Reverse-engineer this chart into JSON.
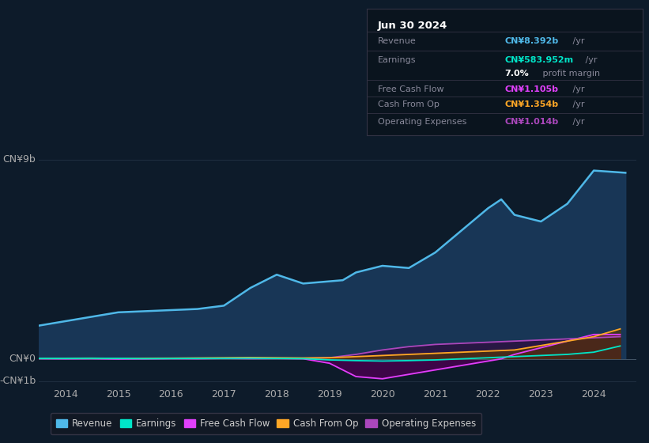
{
  "bg_color": "#0d1b2a",
  "plot_bg_color": "#0d1b2a",
  "ylim": [
    -1200000000.0,
    9800000000.0
  ],
  "xlim_year": [
    2013.5,
    2024.8
  ],
  "xtick_years": [
    2014,
    2015,
    2016,
    2017,
    2018,
    2019,
    2020,
    2021,
    2022,
    2023,
    2024
  ],
  "grid_color": "#1e2d3e",
  "revenue_color": "#4fb8e8",
  "revenue_fill": "#1a3a5c",
  "earnings_color": "#00e5c8",
  "fcf_color": "#e040fb",
  "fcf_fill": "#4a0050",
  "cashop_color": "#ffa726",
  "cashop_fill": "#5c3a00",
  "opex_color": "#ab47bc",
  "opex_fill": "#2d1040",
  "legend_items": [
    {
      "label": "Revenue",
      "color": "#4fb8e8"
    },
    {
      "label": "Earnings",
      "color": "#00e5c8"
    },
    {
      "label": "Free Cash Flow",
      "color": "#e040fb"
    },
    {
      "label": "Cash From Op",
      "color": "#ffa726"
    },
    {
      "label": "Operating Expenses",
      "color": "#ab47bc"
    }
  ],
  "info_box_title": "Jun 30 2024",
  "info_rows": [
    {
      "label": "Revenue",
      "value": "CN¥8.392b",
      "suffix": " /yr",
      "color": "#4fb8e8"
    },
    {
      "label": "Earnings",
      "value": "CN¥583.952m",
      "suffix": " /yr",
      "color": "#00e5c8"
    },
    {
      "label": "",
      "value": "7.0%",
      "suffix": " profit margin",
      "color": "#ffffff"
    },
    {
      "label": "Free Cash Flow",
      "value": "CN¥1.105b",
      "suffix": " /yr",
      "color": "#e040fb"
    },
    {
      "label": "Cash From Op",
      "value": "CN¥1.354b",
      "suffix": " /yr",
      "color": "#ffa726"
    },
    {
      "label": "Operating Expenses",
      "value": "CN¥1.014b",
      "suffix": " /yr",
      "color": "#ab47bc"
    }
  ],
  "revenue": {
    "years": [
      2013.5,
      2014.0,
      2014.5,
      2015.0,
      2015.5,
      2016.0,
      2016.5,
      2017.0,
      2017.5,
      2018.0,
      2018.25,
      2018.5,
      2019.0,
      2019.25,
      2019.5,
      2020.0,
      2020.5,
      2021.0,
      2021.5,
      2022.0,
      2022.25,
      2022.5,
      2023.0,
      2023.5,
      2024.0,
      2024.6
    ],
    "values": [
      1500000000.0,
      1700000000.0,
      1900000000.0,
      2100000000.0,
      2150000000.0,
      2200000000.0,
      2250000000.0,
      2400000000.0,
      3200000000.0,
      3800000000.0,
      3600000000.0,
      3400000000.0,
      3500000000.0,
      3550000000.0,
      3900000000.0,
      4200000000.0,
      4100000000.0,
      4800000000.0,
      5800000000.0,
      6800000000.0,
      7200000000.0,
      6500000000.0,
      6200000000.0,
      7000000000.0,
      8500000000.0,
      8400000000.0
    ]
  },
  "earnings": {
    "years": [
      2013.5,
      2014.0,
      2014.5,
      2015.0,
      2015.5,
      2016.0,
      2016.5,
      2017.0,
      2017.5,
      2018.0,
      2018.5,
      2019.0,
      2019.5,
      2020.0,
      2020.5,
      2021.0,
      2021.5,
      2022.0,
      2022.5,
      2023.0,
      2023.5,
      2024.0,
      2024.5
    ],
    "values": [
      20000000.0,
      20000000.0,
      25000000.0,
      20000000.0,
      10000000.0,
      15000000.0,
      20000000.0,
      25000000.0,
      30000000.0,
      20000000.0,
      10000000.0,
      -50000000.0,
      -80000000.0,
      -100000000.0,
      -80000000.0,
      -50000000.0,
      0.0,
      50000000.0,
      100000000.0,
      150000000.0,
      200000000.0,
      300000000.0,
      580000000.0
    ]
  },
  "fcf": {
    "years": [
      2013.5,
      2014.0,
      2014.5,
      2015.0,
      2015.5,
      2016.0,
      2016.5,
      2017.0,
      2017.5,
      2018.0,
      2018.5,
      2019.0,
      2019.25,
      2019.5,
      2020.0,
      2020.5,
      2021.0,
      2021.5,
      2022.0,
      2022.25,
      2022.5,
      2023.0,
      2023.5,
      2024.0,
      2024.5
    ],
    "values": [
      10000000.0,
      0.0,
      5000000.0,
      -10000000.0,
      0.0,
      10000000.0,
      5000000.0,
      20000000.0,
      10000000.0,
      15000000.0,
      5000000.0,
      -200000000.0,
      -500000000.0,
      -800000000.0,
      -900000000.0,
      -700000000.0,
      -500000000.0,
      -300000000.0,
      -100000000.0,
      0.0,
      200000000.0,
      500000000.0,
      800000000.0,
      1100000000.0,
      1100000000.0
    ]
  },
  "cashop": {
    "years": [
      2013.5,
      2014.0,
      2014.5,
      2015.0,
      2015.5,
      2016.0,
      2016.5,
      2017.0,
      2017.5,
      2018.0,
      2018.5,
      2019.0,
      2019.5,
      2020.0,
      2020.5,
      2021.0,
      2021.5,
      2022.0,
      2022.5,
      2023.0,
      2023.5,
      2024.0,
      2024.5
    ],
    "values": [
      20000000.0,
      25000000.0,
      30000000.0,
      20000000.0,
      25000000.0,
      30000000.0,
      40000000.0,
      50000000.0,
      60000000.0,
      50000000.0,
      40000000.0,
      50000000.0,
      100000000.0,
      150000000.0,
      200000000.0,
      250000000.0,
      300000000.0,
      350000000.0,
      400000000.0,
      600000000.0,
      800000000.0,
      1000000000.0,
      1350000000.0
    ]
  },
  "opex": {
    "years": [
      2013.5,
      2014.0,
      2014.5,
      2015.0,
      2015.5,
      2016.0,
      2016.5,
      2017.0,
      2017.5,
      2018.0,
      2018.5,
      2019.0,
      2019.5,
      2020.0,
      2020.5,
      2021.0,
      2021.5,
      2022.0,
      2022.5,
      2023.0,
      2023.5,
      2024.0,
      2024.5
    ],
    "values": [
      10000000.0,
      15000000.0,
      20000000.0,
      15000000.0,
      10000000.0,
      15000000.0,
      20000000.0,
      25000000.0,
      30000000.0,
      25000000.0,
      20000000.0,
      50000000.0,
      200000000.0,
      400000000.0,
      550000000.0,
      650000000.0,
      700000000.0,
      750000000.0,
      800000000.0,
      850000000.0,
      900000000.0,
      950000000.0,
      1000000000.0
    ]
  }
}
